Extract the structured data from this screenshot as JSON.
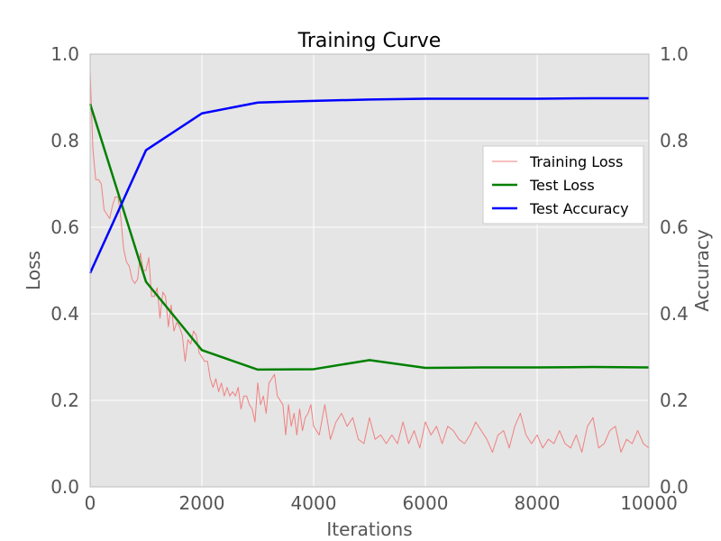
{
  "chart_data": {
    "type": "line",
    "title": "Training Curve",
    "xlabel": "Iterations",
    "ylabel": "Loss",
    "y2label": "Accuracy",
    "xlim": [
      0,
      10000
    ],
    "ylim": [
      0,
      1.0
    ],
    "y2lim": [
      0,
      1.0
    ],
    "xticks": [
      "0",
      "2000",
      "4000",
      "6000",
      "8000",
      "10000"
    ],
    "yticks": [
      "0.0",
      "0.2",
      "0.4",
      "0.6",
      "0.8",
      "1.0"
    ],
    "y2ticks": [
      "0.0",
      "0.2",
      "0.4",
      "0.6",
      "0.8",
      "1.0"
    ],
    "grid": true,
    "legend_position": "center-right",
    "series": [
      {
        "name": "Training Loss",
        "axis": "left",
        "color": "#f08080",
        "x": [
          0,
          50,
          100,
          150,
          200,
          250,
          300,
          350,
          400,
          450,
          500,
          550,
          600,
          650,
          700,
          750,
          800,
          850,
          900,
          950,
          1000,
          1050,
          1100,
          1150,
          1200,
          1250,
          1300,
          1350,
          1400,
          1450,
          1500,
          1550,
          1600,
          1650,
          1700,
          1750,
          1800,
          1850,
          1900,
          1950,
          2000,
          2050,
          2100,
          2150,
          2200,
          2250,
          2300,
          2350,
          2400,
          2450,
          2500,
          2550,
          2600,
          2650,
          2700,
          2750,
          2800,
          2850,
          2900,
          2950,
          3000,
          3050,
          3100,
          3150,
          3200,
          3250,
          3300,
          3350,
          3400,
          3450,
          3500,
          3550,
          3600,
          3650,
          3700,
          3750,
          3800,
          3850,
          3900,
          3950,
          4000,
          4100,
          4200,
          4300,
          4400,
          4500,
          4600,
          4700,
          4800,
          4900,
          5000,
          5100,
          5200,
          5300,
          5400,
          5500,
          5600,
          5700,
          5800,
          5900,
          6000,
          6100,
          6200,
          6300,
          6400,
          6500,
          6600,
          6700,
          6800,
          6900,
          7000,
          7100,
          7200,
          7300,
          7400,
          7500,
          7600,
          7700,
          7800,
          7900,
          8000,
          8100,
          8200,
          8300,
          8400,
          8500,
          8600,
          8700,
          8800,
          8900,
          9000,
          9100,
          9200,
          9300,
          9400,
          9500,
          9600,
          9700,
          9800,
          9900,
          10000
        ],
        "values": [
          0.96,
          0.78,
          0.71,
          0.71,
          0.7,
          0.64,
          0.63,
          0.62,
          0.65,
          0.67,
          0.67,
          0.62,
          0.55,
          0.52,
          0.51,
          0.48,
          0.47,
          0.48,
          0.54,
          0.5,
          0.5,
          0.53,
          0.44,
          0.44,
          0.46,
          0.39,
          0.45,
          0.44,
          0.37,
          0.42,
          0.36,
          0.38,
          0.37,
          0.35,
          0.29,
          0.34,
          0.33,
          0.36,
          0.35,
          0.31,
          0.3,
          0.29,
          0.29,
          0.25,
          0.23,
          0.25,
          0.22,
          0.24,
          0.21,
          0.23,
          0.21,
          0.22,
          0.21,
          0.23,
          0.18,
          0.21,
          0.21,
          0.19,
          0.18,
          0.15,
          0.24,
          0.19,
          0.21,
          0.17,
          0.24,
          0.25,
          0.26,
          0.21,
          0.2,
          0.19,
          0.12,
          0.19,
          0.14,
          0.17,
          0.12,
          0.18,
          0.13,
          0.16,
          0.17,
          0.19,
          0.14,
          0.12,
          0.19,
          0.11,
          0.15,
          0.17,
          0.14,
          0.16,
          0.11,
          0.1,
          0.16,
          0.11,
          0.12,
          0.1,
          0.12,
          0.1,
          0.15,
          0.1,
          0.13,
          0.09,
          0.15,
          0.12,
          0.14,
          0.1,
          0.14,
          0.13,
          0.11,
          0.1,
          0.12,
          0.15,
          0.13,
          0.11,
          0.08,
          0.12,
          0.13,
          0.09,
          0.14,
          0.17,
          0.12,
          0.1,
          0.12,
          0.09,
          0.11,
          0.1,
          0.13,
          0.1,
          0.09,
          0.12,
          0.08,
          0.14,
          0.16,
          0.09,
          0.1,
          0.13,
          0.14,
          0.08,
          0.11,
          0.1,
          0.13,
          0.1,
          0.09
        ]
      },
      {
        "name": "Test Loss",
        "axis": "left",
        "color": "#008000",
        "x": [
          0,
          1000,
          2000,
          3000,
          4000,
          5000,
          6000,
          7000,
          8000,
          9000,
          10000
        ],
        "values": [
          0.885,
          0.474,
          0.316,
          0.271,
          0.272,
          0.293,
          0.275,
          0.276,
          0.276,
          0.277,
          0.276
        ]
      },
      {
        "name": "Test Accuracy",
        "axis": "right",
        "color": "#0000ff",
        "x": [
          0,
          1000,
          2000,
          3000,
          4000,
          5000,
          6000,
          7000,
          8000,
          9000,
          10000
        ],
        "values": [
          0.494,
          0.778,
          0.863,
          0.888,
          0.892,
          0.895,
          0.897,
          0.897,
          0.897,
          0.898,
          0.898
        ]
      }
    ]
  }
}
